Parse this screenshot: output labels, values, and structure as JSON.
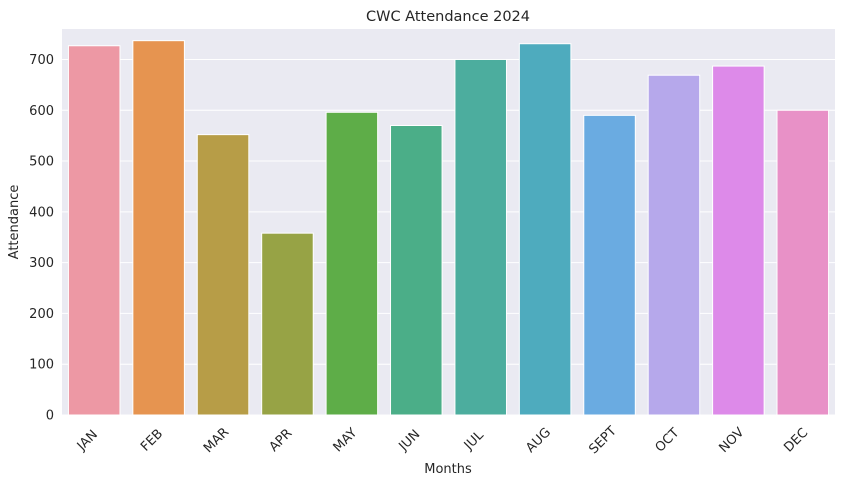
{
  "chart_data": {
    "type": "bar",
    "title": "CWC Attendance 2024",
    "xlabel": "Months",
    "ylabel": "Attendance",
    "categories": [
      "JAN",
      "FEB",
      "MAR",
      "APR",
      "MAY",
      "JUN",
      "JUL",
      "AUG",
      "SEPT",
      "OCT",
      "NOV",
      "DEC"
    ],
    "values": [
      727,
      737,
      552,
      358,
      596,
      570,
      700,
      731,
      590,
      669,
      687,
      600
    ],
    "colors": [
      "#ed98a4",
      "#e69450",
      "#b79d47",
      "#97a345",
      "#5ead48",
      "#4bae88",
      "#4cad9e",
      "#4eabbe",
      "#6aabe1",
      "#b6a8eb",
      "#dd8ae9",
      "#e891c7"
    ],
    "ylim": [
      0,
      760
    ],
    "yticks": [
      0,
      100,
      200,
      300,
      400,
      500,
      600,
      700
    ],
    "grid": true,
    "background": "#eaeaf2",
    "grid_color": "#ffffff",
    "legend": "none"
  }
}
